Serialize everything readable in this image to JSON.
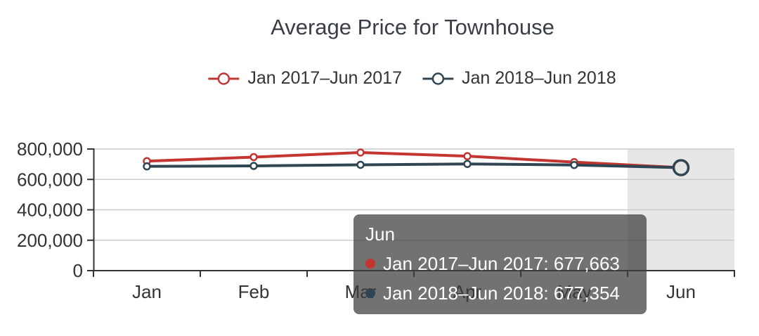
{
  "title": {
    "text": "Average Price for Townhouse"
  },
  "legend": {
    "items": [
      {
        "label": "Jan 2017–Jun 2017",
        "color": "#c23531"
      },
      {
        "label": "Jan 2018–Jun 2018",
        "color": "#2f4554"
      }
    ]
  },
  "tooltip": {
    "header": "Jun",
    "rows": [
      {
        "text": "Jan 2017–Jun 2017: 677,663",
        "color": "#c23531"
      },
      {
        "text": "Jan 2018–Jun 2018: 677,354",
        "color": "#2f4554"
      }
    ]
  },
  "chart_data": {
    "type": "line",
    "title": "Average Price for Townhouse",
    "categories": [
      "Jan",
      "Feb",
      "Mar",
      "Apr",
      "May",
      "Jun"
    ],
    "series": [
      {
        "name": "Jan 2017–Jun 2017",
        "color": "#c23531",
        "values": [
          720000,
          747000,
          777000,
          753000,
          714000,
          677663
        ]
      },
      {
        "name": "Jan 2018–Jun 2018",
        "color": "#2f4554",
        "values": [
          686000,
          689000,
          696000,
          702000,
          695000,
          677354
        ]
      }
    ],
    "xlabel": "",
    "ylabel": "",
    "ylim": [
      0,
      800000
    ],
    "yticks": [
      0,
      200000,
      400000,
      600000,
      800000
    ],
    "grid": true,
    "legend_position": "top",
    "hovered_category": "Jun",
    "hovered_values": [
      677663,
      677354
    ],
    "highlight_band_color": "rgba(170,170,170,0.28)",
    "axis_color": "#333333",
    "gridline_color": "#cccccc",
    "marker_style": "hollow-circle"
  }
}
